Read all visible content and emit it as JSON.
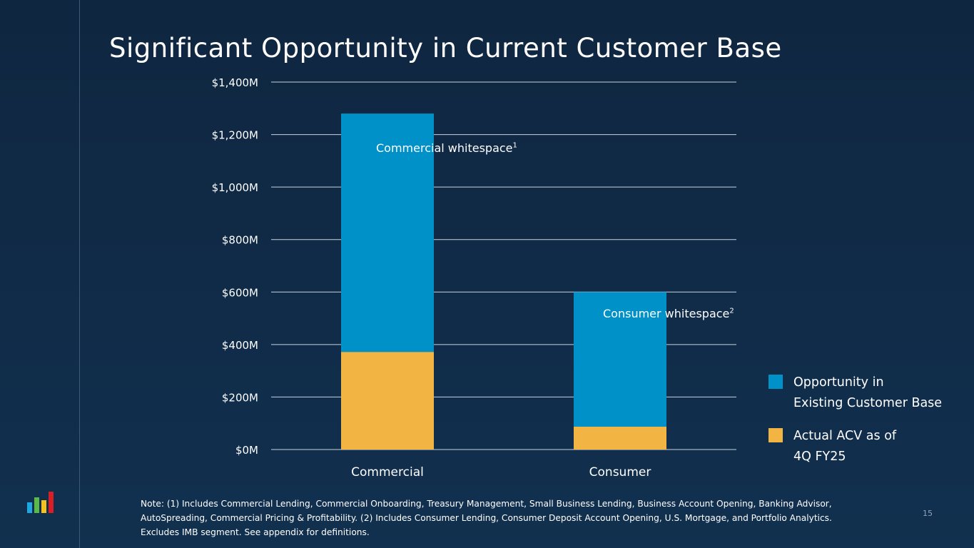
{
  "title": "Significant Opportunity in Current Customer Base",
  "chart_data": {
    "type": "bar",
    "stacked": true,
    "title": "Significant Opportunity in Current Customer Base",
    "categories": [
      "Commercial",
      "Consumer"
    ],
    "series": [
      {
        "name": "Actual ACV as of 4Q FY25",
        "values": [
          372,
          87
        ],
        "color": "#f2b544"
      },
      {
        "name": "Opportunity in Existing Customer Base",
        "values": [
          908,
          513
        ],
        "color": "#0091c9"
      }
    ],
    "ylim": [
      0,
      1400
    ],
    "yticks": [
      0,
      200,
      400,
      600,
      800,
      1000,
      1200,
      1400
    ],
    "ytick_labels": [
      "$0M",
      "$200M",
      "$400M",
      "$600M",
      "$800M",
      "$1,000M",
      "$1,200M",
      "$1,400M"
    ],
    "grid": true,
    "legend_position": "right",
    "annotations": [
      {
        "text": "Commercial whitespace",
        "sup": "1"
      },
      {
        "text": "Consumer whitespace",
        "sup": "2"
      }
    ]
  },
  "legend": [
    {
      "line1": "Opportunity in",
      "line2": "Existing Customer Base"
    },
    {
      "line1": "Actual ACV as of",
      "line2": "4Q FY25"
    }
  ],
  "note": "Note: (1) Includes Commercial Lending, Commercial Onboarding, Treasury Management, Small Business Lending, Business Account Opening, Banking Advisor, AutoSpreading, Commercial Pricing & Profitability. (2)  Includes Consumer Lending, Consumer Deposit Account Opening, U.S. Mortgage, and Portfolio Analytics. Excludes IMB segment. See appendix for definitions.",
  "page_number": "15"
}
